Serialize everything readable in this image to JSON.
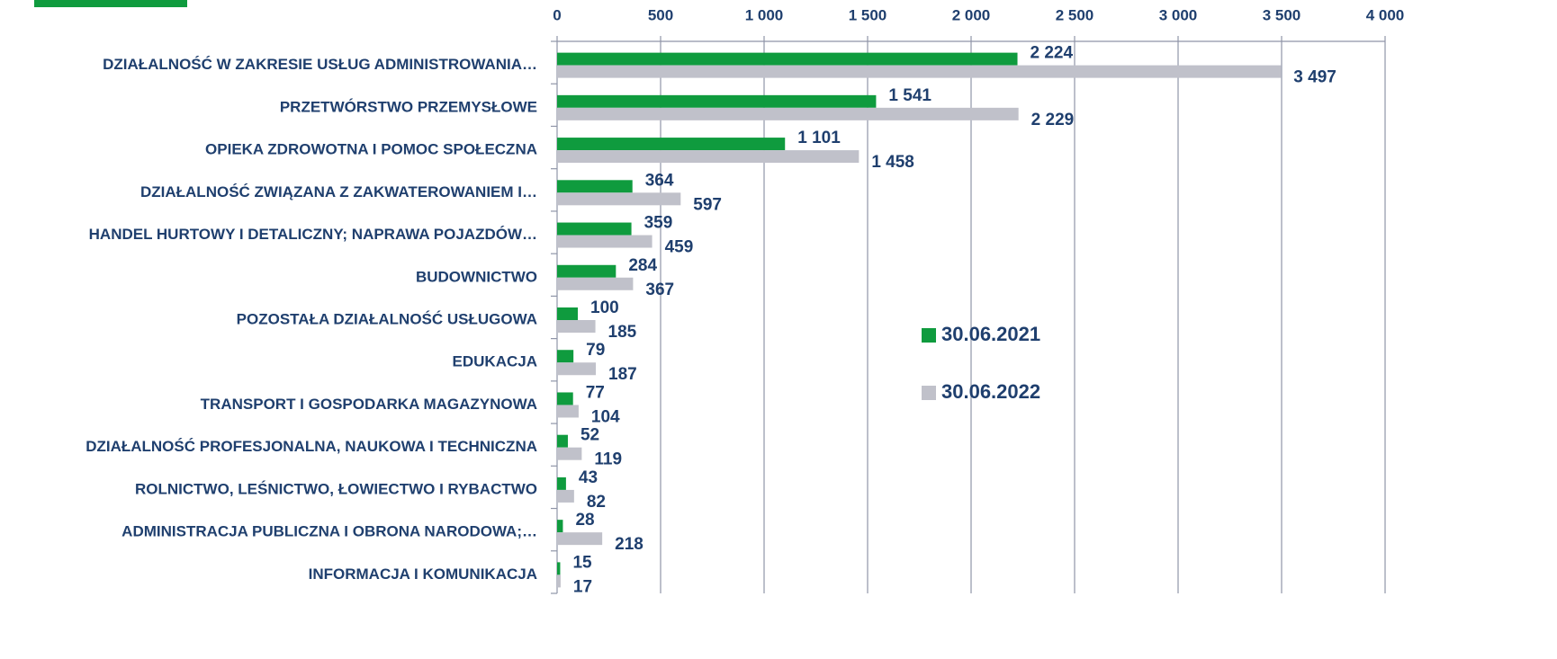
{
  "chart_data": {
    "type": "bar",
    "orientation": "horizontal",
    "categories": [
      "DZIAŁALNOŚĆ W ZAKRESIE USŁUG ADMINISTROWANIA…",
      "PRZETWÓRSTWO PRZEMYSŁOWE",
      "OPIEKA ZDROWOTNA I POMOC SPOŁECZNA",
      "DZIAŁALNOŚĆ ZWIĄZANA Z ZAKWATEROWANIEM I…",
      "HANDEL HURTOWY I DETALICZNY; NAPRAWA POJAZDÓW…",
      "BUDOWNICTWO",
      "POZOSTAŁA DZIAŁALNOŚĆ USŁUGOWA",
      "EDUKACJA",
      "TRANSPORT I GOSPODARKA MAGAZYNOWA",
      "DZIAŁALNOŚĆ PROFESJONALNA, NAUKOWA I TECHNICZNA",
      "ROLNICTWO, LEŚNICTWO, ŁOWIECTWO I RYBACTWO",
      "ADMINISTRACJA PUBLICZNA I OBRONA NARODOWA;…",
      "INFORMACJA I KOMUNIKACJA"
    ],
    "series": [
      {
        "name": "30.06.2021",
        "color": "#0f9b3e",
        "values": [
          2224,
          1541,
          1101,
          364,
          359,
          284,
          100,
          79,
          77,
          52,
          43,
          28,
          15
        ],
        "value_labels": [
          "2 224",
          "1 541",
          "1 101",
          "364",
          "359",
          "284",
          "100",
          "79",
          "77",
          "52",
          "43",
          "28",
          "15"
        ]
      },
      {
        "name": "30.06.2022",
        "color": "#c0c1ca",
        "values": [
          3497,
          2229,
          1458,
          597,
          459,
          367,
          185,
          187,
          104,
          119,
          82,
          218,
          17
        ],
        "value_labels": [
          "3 497",
          "2 229",
          "1 458",
          "597",
          "459",
          "367",
          "185",
          "187",
          "104",
          "119",
          "82",
          "218",
          "17"
        ]
      }
    ],
    "xlim": [
      0,
      4000
    ],
    "xticks": [
      0,
      500,
      {
        "value": 1000,
        "label": "1 000"
      },
      {
        "value": 1500,
        "label": "1 500"
      },
      {
        "value": 2000,
        "label": "2 000"
      },
      {
        "value": 2500,
        "label": "2 500"
      },
      {
        "value": 3000,
        "label": "3 000"
      },
      {
        "value": 3500,
        "label": "3 500"
      },
      {
        "value": 4000,
        "label": "4 000"
      }
    ],
    "grid": true
  }
}
